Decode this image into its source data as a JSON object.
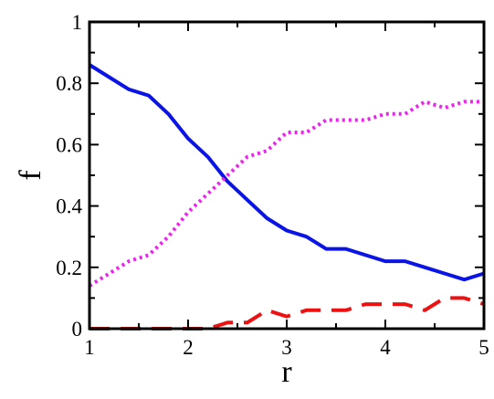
{
  "chart_data": {
    "type": "line",
    "xlabel": "r",
    "ylabel": "f",
    "xlim": [
      1,
      5
    ],
    "ylim": [
      0,
      1
    ],
    "xticks": [
      1,
      2,
      3,
      4,
      5
    ],
    "xtick_labels": [
      "1",
      "2",
      "3",
      "4",
      "5"
    ],
    "yticks": [
      0,
      0.2,
      0.4,
      0.6,
      0.8,
      1
    ],
    "ytick_labels": [
      "0",
      "0.2",
      "0.4",
      "0.6",
      "0.8",
      "1"
    ],
    "grid": false,
    "legend": "none",
    "x": [
      1.0,
      1.2,
      1.4,
      1.6,
      1.8,
      2.0,
      2.2,
      2.4,
      2.6,
      2.8,
      3.0,
      3.2,
      3.4,
      3.6,
      3.8,
      4.0,
      4.2,
      4.4,
      4.6,
      4.8,
      5.0
    ],
    "series": [
      {
        "color": "#0a14e6",
        "style": "solid",
        "values": [
          0.86,
          0.82,
          0.78,
          0.76,
          0.7,
          0.62,
          0.56,
          0.48,
          0.42,
          0.36,
          0.32,
          0.3,
          0.26,
          0.26,
          0.24,
          0.22,
          0.22,
          0.2,
          0.18,
          0.16,
          0.18
        ]
      },
      {
        "color": "#ee22ee",
        "style": "dotted",
        "values": [
          0.14,
          0.18,
          0.22,
          0.24,
          0.3,
          0.38,
          0.44,
          0.5,
          0.56,
          0.58,
          0.64,
          0.64,
          0.68,
          0.68,
          0.68,
          0.7,
          0.7,
          0.74,
          0.72,
          0.74,
          0.74
        ]
      },
      {
        "color": "#ee1111",
        "style": "dashed",
        "values": [
          0.0,
          0.0,
          0.0,
          0.0,
          0.0,
          0.0,
          0.0,
          0.02,
          0.02,
          0.06,
          0.04,
          0.06,
          0.06,
          0.06,
          0.08,
          0.08,
          0.08,
          0.06,
          0.1,
          0.1,
          0.08
        ]
      }
    ]
  }
}
